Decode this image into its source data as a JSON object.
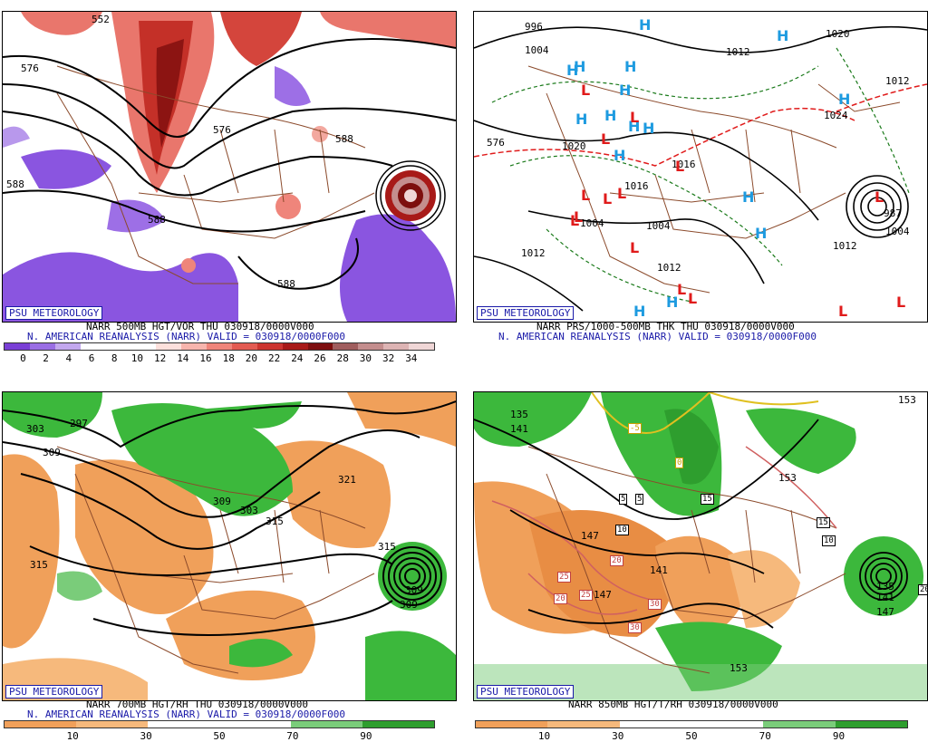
{
  "badge": "PSU METEOROLOGY",
  "panels": {
    "vort": {
      "line1": "NARR 500MB HGT/VOR THU 030918/0000V000",
      "line2": "N. AMERICAN REANALYSIS (NARR) VALID = 030918/0000F000",
      "colorbar_ticks": [
        "0",
        "2",
        "4",
        "6",
        "8",
        "10",
        "12",
        "14",
        "16",
        "18",
        "20",
        "22",
        "24",
        "26",
        "28",
        "30",
        "32",
        "34"
      ],
      "colorbar_colors": [
        "#7a3fd6",
        "#9a6ee4",
        "#c3a8ee",
        "#ffffff",
        "#ffffff",
        "#ffffff",
        "#fde0dc",
        "#f7b5ad",
        "#ef857b",
        "#e35b52",
        "#cc3530",
        "#a81a18",
        "#7d0f0e",
        "#a05e5e",
        "#c48e8e",
        "#ddb4b4",
        "#efd6d6"
      ],
      "contours": [
        "552",
        "576",
        "576",
        "588",
        "588",
        "588",
        "588"
      ]
    },
    "mslp": {
      "line1": "NARR PRS/1000-500MB THK THU 030918/0000V000",
      "line2": "N. AMERICAN REANALYSIS (NARR) VALID = 030918/0000F000",
      "contours": [
        "996",
        "1004",
        "1012",
        "1020",
        "1020",
        "1016",
        "1016",
        "1012",
        "1024",
        "1004",
        "1004",
        "1012",
        "1012",
        "987",
        "1004",
        "1012",
        "576"
      ],
      "highs": [
        "H",
        "H",
        "H",
        "H",
        "H",
        "H",
        "H",
        "H",
        "H",
        "H",
        "H",
        "H",
        "H",
        "H",
        "H",
        "H"
      ],
      "lows": [
        "L",
        "L",
        "L",
        "L",
        "L",
        "L",
        "L",
        "L",
        "L",
        "L",
        "L",
        "L",
        "L",
        "L",
        "L"
      ]
    },
    "rh700": {
      "line1": "NARR 700MB HGT/RH THU 030918/0000V000",
      "line2": "N. AMERICAN REANALYSIS (NARR) VALID = 030918/0000F000",
      "colorbar_ticks": [
        "10",
        "30",
        "50",
        "70",
        "90"
      ],
      "contours": [
        "297",
        "303",
        "309",
        "315",
        "309",
        "303",
        "315",
        "309",
        "321",
        "315",
        "309"
      ]
    },
    "t850": {
      "line1": "NARR 850MB HGT/T/RH 030918/0000V000",
      "colorbar_ticks": [
        "10",
        "30",
        "50",
        "70",
        "90"
      ],
      "contours": [
        "135",
        "141",
        "147",
        "153",
        "153",
        "147",
        "141",
        "135",
        "141",
        "147",
        "153"
      ],
      "temp_boxes": [
        "-5",
        "0",
        "5",
        "5",
        "15",
        "10",
        "20",
        "25",
        "20",
        "25",
        "30",
        "30",
        "15",
        "10",
        "20"
      ]
    }
  },
  "colors": {
    "badge_blue": "#1a1aa8",
    "height_contour": "#000000",
    "map_lines": "#8b4a2b",
    "high_marker": "#1e9be0",
    "low_marker": "#e01b1b",
    "dry": "#f0a05a",
    "moist": "#3cb83c"
  }
}
